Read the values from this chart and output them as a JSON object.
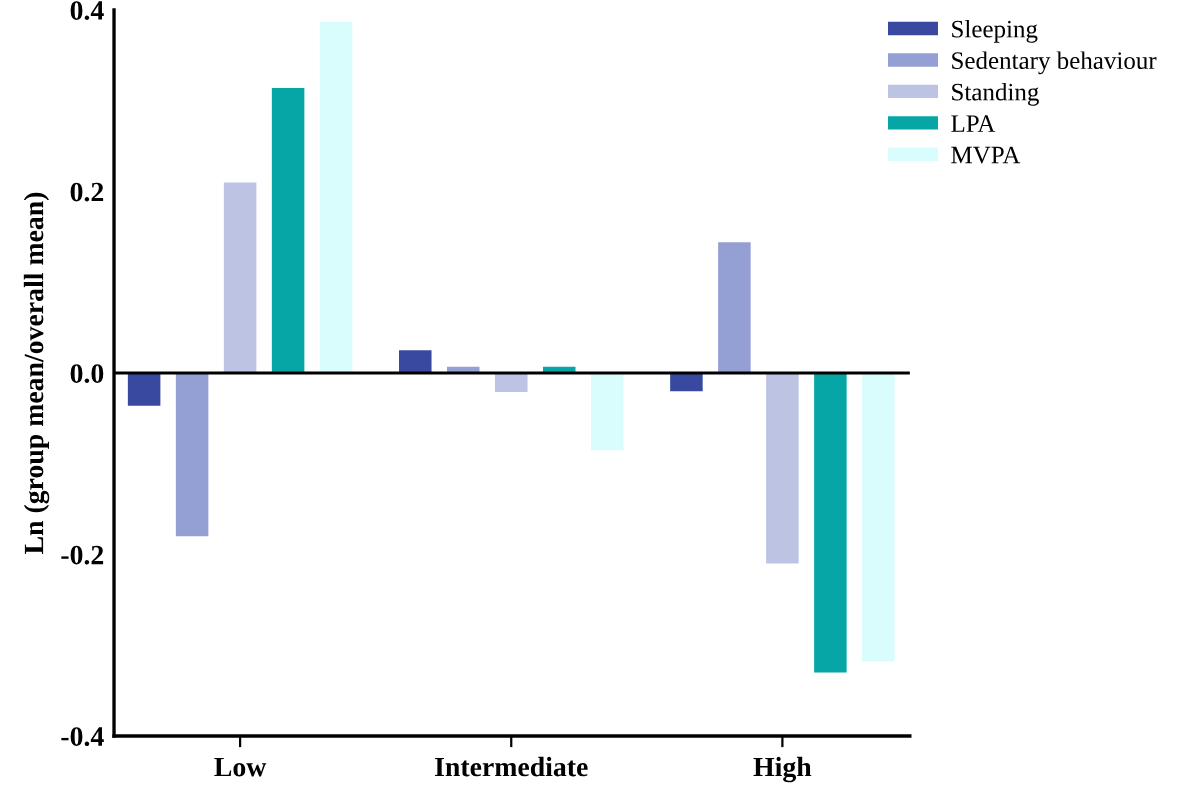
{
  "chart_data": {
    "type": "bar",
    "ylabel": "Ln (group mean/overall mean)",
    "categories": [
      "Low",
      "Intermediate",
      "High"
    ],
    "series": [
      {
        "name": "Sleeping",
        "color": "#3949a0",
        "values": [
          -0.036,
          0.025,
          -0.02
        ]
      },
      {
        "name": "Sedentary behaviour",
        "color": "#949fd4",
        "values": [
          -0.18,
          0.007,
          0.144
        ]
      },
      {
        "name": "Standing",
        "color": "#bcc3e3",
        "values": [
          0.21,
          -0.021,
          -0.21
        ]
      },
      {
        "name": "LPA",
        "color": "#07a6a6",
        "values": [
          0.314,
          0.007,
          -0.33
        ]
      },
      {
        "name": "MVPA",
        "color": "#d8fdfc",
        "values": [
          0.387,
          -0.085,
          -0.318
        ]
      }
    ],
    "ylim": [
      -0.4,
      0.4
    ],
    "yticks": [
      {
        "value": -0.4,
        "label": "-0.4"
      },
      {
        "value": -0.2,
        "label": "-0.2"
      },
      {
        "value": 0,
        "label": "0.0"
      },
      {
        "value": 0.2,
        "label": "0.2"
      },
      {
        "value": 0.4,
        "label": "0.4"
      }
    ],
    "ref_lines": [
      {
        "axis": "y",
        "value": 0,
        "color": "#000000"
      }
    ],
    "grid": false,
    "legend": "top right"
  }
}
